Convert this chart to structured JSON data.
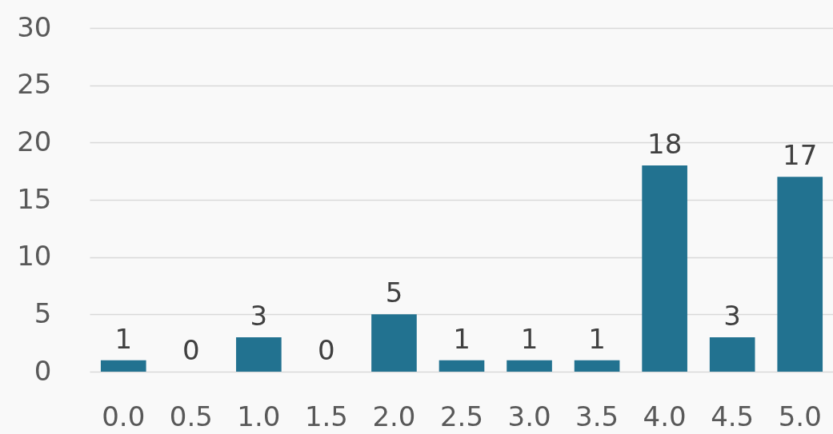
{
  "chart_data": {
    "type": "bar",
    "categories": [
      "0.0",
      "0.5",
      "1.0",
      "1.5",
      "2.0",
      "2.5",
      "3.0",
      "3.5",
      "4.0",
      "4.5",
      "5.0"
    ],
    "values": [
      1,
      0,
      3,
      0,
      5,
      1,
      1,
      1,
      18,
      3,
      17
    ],
    "color": "#227290",
    "ylim": [
      0,
      30
    ],
    "yticks": [
      0,
      5,
      10,
      15,
      20,
      25,
      30
    ],
    "grid": "y",
    "data_labels": true
  }
}
